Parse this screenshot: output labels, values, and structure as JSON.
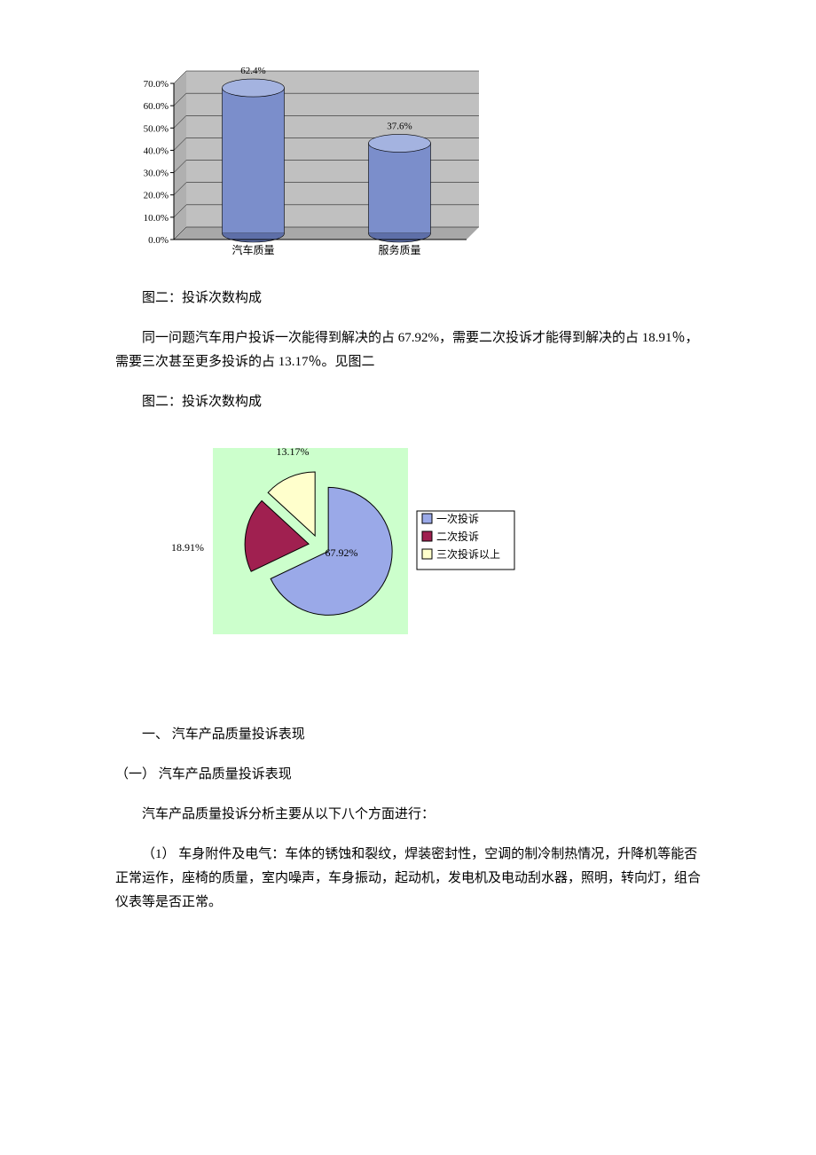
{
  "bar_chart": {
    "type": "bar3d",
    "plot_bg": "#c0c0c0",
    "axis_color": "#000000",
    "grid_color": "#000000",
    "label_color": "#000000",
    "tick_fontsize": 11,
    "value_fontsize": 11,
    "category_fontsize": 12,
    "ylim": [
      0,
      70
    ],
    "ytick_step": 10,
    "ytick_labels": [
      "0.0%",
      "10.0%",
      "20.0%",
      "30.0%",
      "40.0%",
      "50.0%",
      "60.0%",
      "70.0%"
    ],
    "categories": [
      "汽车质量",
      "服务质量"
    ],
    "values": [
      62.4,
      37.6
    ],
    "value_labels": [
      "62.4%",
      "37.6%"
    ],
    "bar_fill": "#7b8ecb",
    "bar_top": "#a4b3e0",
    "bar_side": "#5e6fa8",
    "bar_outline": "#000000"
  },
  "caption1": "图二：投诉次数构成",
  "para1": "同一问题汽车用户投诉一次能得到解决的占 67.92%，需要二次投诉才能得到解决的占 18.91％，需要三次甚至更多投诉的占 13.17％。见图二",
  "caption2": "图二：投诉次数构成",
  "pie_chart": {
    "type": "pie",
    "plot_bg": "#ccffcc",
    "outer_bg": "#ffffff",
    "slices": [
      {
        "label": "一次投诉",
        "value": 67.92,
        "color": "#9aa9e8",
        "data_label": "67.92%"
      },
      {
        "label": "二次投诉",
        "value": 18.91,
        "color": "#a02050",
        "data_label": "18.91%"
      },
      {
        "label": "三次投诉以上",
        "value": 13.17,
        "color": "#ffffcc",
        "data_label": "13.17%"
      }
    ],
    "label_fontsize": 12,
    "legend_fontsize": 12,
    "legend_box_stroke": "#000000",
    "legend_swatch_stroke": "#000000",
    "slice_stroke": "#000000",
    "explode": 12
  },
  "heading1": "一、 汽车产品质量投诉表现",
  "heading2": "（一） 汽车产品质量投诉表现",
  "para2": "汽车产品质量投诉分析主要从以下八个方面进行：",
  "para3": "（1） 车身附件及电气：车体的锈蚀和裂纹，焊装密封性，空调的制冷制热情况，升降机等能否正常运作，座椅的质量，室内噪声，车身振动，起动机，发电机及电动刮水器，照明，转向灯，组合仪表等是否正常。"
}
